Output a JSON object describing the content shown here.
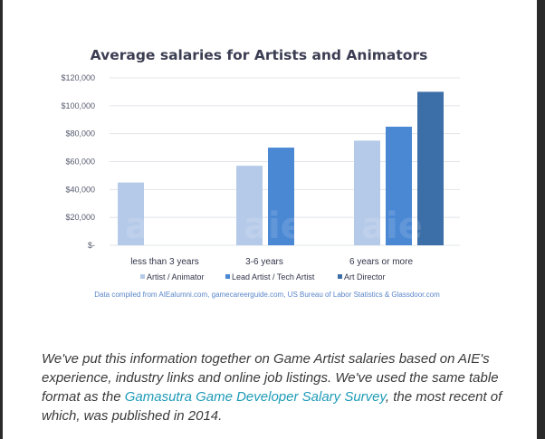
{
  "chart_data": {
    "type": "bar",
    "title": "Average salaries for Artists and Animators",
    "categories": [
      "less than 3 years",
      "3-6 years",
      "6 years or more"
    ],
    "series": [
      {
        "name": "Artist / Animator",
        "color": "#b5cae8",
        "values": [
          45000,
          57000,
          75000
        ]
      },
      {
        "name": "Lead Artist / Tech Artist",
        "color": "#4a88d4",
        "values": [
          null,
          70000,
          85000
        ]
      },
      {
        "name": "Art Director",
        "color": "#3c6fa8",
        "values": [
          null,
          null,
          110000
        ]
      }
    ],
    "yticks": [
      "$-",
      "$20,000",
      "$40,000",
      "$60,000",
      "$80,000",
      "$100,000",
      "$120,000"
    ],
    "ylim": [
      0,
      120000
    ],
    "legend_position": "bottom",
    "source_note": "Data compiled from AIEalumni.com, gamecareerguide.com, US Bureau of Labor Statistics & Glassdoor.com",
    "watermark_text": "aie"
  },
  "text": {
    "before_link": "We've put this information together on Game Artist salaries based on AIE's experience, industry links and online job listings. We've used the same table format as the ",
    "link": "Gamasutra Game Developer Salary Survey",
    "after_link": ", the most recent of which, was published in 2014."
  }
}
